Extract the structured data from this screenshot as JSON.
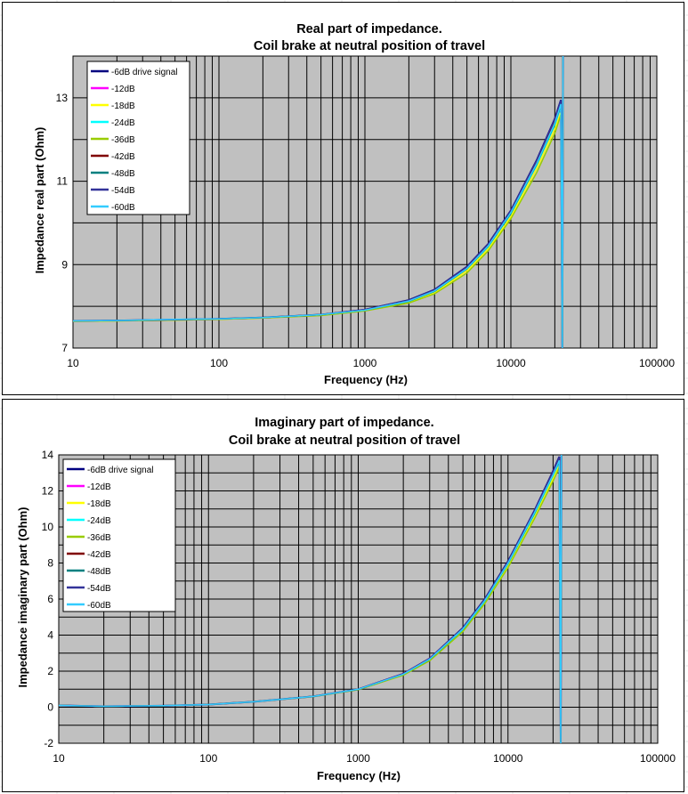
{
  "charts": [
    {
      "title_line1": "Real part of impedance.",
      "title_line2": "Coil brake at neutral position of  travel",
      "xlabel": "Frequency (Hz)",
      "ylabel": "Impedance real part (Ohm)",
      "x_ticks": [
        "10",
        "100",
        "1000",
        "10000",
        "100000"
      ],
      "y_ticks": [
        "7",
        "9",
        "11",
        "13"
      ]
    },
    {
      "title_line1": "Imaginary part of impedance.",
      "title_line2": "Coil brake at neutral position of  travel",
      "xlabel": "Frequency (Hz)",
      "ylabel": "Impedance imaginary part (Ohm)",
      "x_ticks": [
        "10",
        "100",
        "1000",
        "10000",
        "100000"
      ],
      "y_ticks": [
        "-2",
        "0",
        "2",
        "4",
        "6",
        "8",
        "10",
        "12",
        "14"
      ]
    }
  ],
  "legend": [
    {
      "label": "-6dB drive signal",
      "color": "#000080"
    },
    {
      "label": "-12dB",
      "color": "#ff00ff"
    },
    {
      "label": "-18dB",
      "color": "#ffff00"
    },
    {
      "label": "-24dB",
      "color": "#00ffff"
    },
    {
      "label": "-36dB",
      "color": "#99cc00"
    },
    {
      "label": "-42dB",
      "color": "#800000"
    },
    {
      "label": "-48dB",
      "color": "#008080"
    },
    {
      "label": "-54dB",
      "color": "#333399"
    },
    {
      "label": "-60dB",
      "color": "#33ccff"
    }
  ],
  "chart_data": [
    {
      "type": "line",
      "title": "Real part of impedance. Coil brake at neutral position of  travel",
      "xlabel": "Frequency (Hz)",
      "ylabel": "Impedance real part (Ohm)",
      "x_scale": "log",
      "xlim": [
        10,
        100000
      ],
      "ylim": [
        7,
        14
      ],
      "grid": true,
      "legend_position": "top-left",
      "x": [
        10,
        20,
        50,
        100,
        200,
        500,
        1000,
        2000,
        3000,
        5000,
        7000,
        10000,
        15000,
        20000,
        22000
      ],
      "series": [
        {
          "name": "-6dB drive signal",
          "values": [
            7.65,
            7.66,
            7.68,
            7.7,
            7.73,
            7.8,
            7.92,
            8.15,
            8.4,
            8.95,
            9.5,
            10.3,
            11.5,
            12.5,
            12.95
          ]
        },
        {
          "name": "-12dB",
          "values": [
            7.65,
            7.66,
            7.68,
            7.7,
            7.73,
            7.8,
            7.92,
            8.14,
            8.39,
            8.93,
            9.48,
            10.28,
            11.45,
            12.45,
            12.9
          ]
        },
        {
          "name": "-18dB",
          "values": [
            7.64,
            7.65,
            7.67,
            7.69,
            7.72,
            7.79,
            7.9,
            8.1,
            8.33,
            8.85,
            9.38,
            10.15,
            11.3,
            12.25,
            12.65
          ]
        },
        {
          "name": "-24dB",
          "values": [
            7.65,
            7.66,
            7.68,
            7.7,
            7.73,
            7.8,
            7.91,
            8.12,
            8.36,
            8.9,
            9.43,
            10.22,
            11.38,
            12.35,
            12.8
          ]
        },
        {
          "name": "-36dB",
          "values": [
            7.64,
            7.65,
            7.67,
            7.69,
            7.72,
            7.78,
            7.89,
            8.08,
            8.3,
            8.8,
            9.33,
            10.1,
            11.2,
            12.15,
            12.6
          ]
        },
        {
          "name": "-42dB",
          "values": [
            7.65,
            7.66,
            7.68,
            7.7,
            7.73,
            7.8,
            7.92,
            8.14,
            8.38,
            8.92,
            9.47,
            10.27,
            11.44,
            12.44,
            12.88
          ]
        },
        {
          "name": "-48dB",
          "values": [
            7.65,
            7.66,
            7.68,
            7.7,
            7.73,
            7.8,
            7.91,
            8.12,
            8.36,
            8.9,
            9.44,
            10.23,
            11.4,
            12.38,
            12.82
          ]
        },
        {
          "name": "-54dB",
          "values": [
            7.65,
            7.66,
            7.68,
            7.7,
            7.73,
            7.8,
            7.92,
            8.15,
            8.4,
            8.95,
            9.5,
            10.3,
            11.5,
            12.5,
            12.95
          ]
        },
        {
          "name": "-60dB",
          "values": [
            7.65,
            7.66,
            7.69,
            7.7,
            7.73,
            7.8,
            7.91,
            8.13,
            8.37,
            8.91,
            9.45,
            10.25,
            11.42,
            12.4,
            12.85
          ]
        }
      ]
    },
    {
      "type": "line",
      "title": "Imaginary part of impedance. Coil brake at neutral position of  travel",
      "xlabel": "Frequency (Hz)",
      "ylabel": "Impedance imaginary part (Ohm)",
      "x_scale": "log",
      "xlim": [
        10,
        100000
      ],
      "ylim": [
        -2,
        14
      ],
      "grid": true,
      "legend_position": "top-left",
      "x": [
        10,
        20,
        50,
        100,
        200,
        500,
        1000,
        2000,
        3000,
        5000,
        7000,
        10000,
        15000,
        20000,
        22000
      ],
      "series": [
        {
          "name": "-6dB drive signal",
          "values": [
            0.1,
            0.05,
            0.08,
            0.15,
            0.3,
            0.6,
            1.0,
            1.85,
            2.7,
            4.4,
            6.0,
            8.1,
            10.9,
            13.1,
            13.9
          ]
        },
        {
          "name": "-12dB",
          "values": [
            0.1,
            0.05,
            0.08,
            0.15,
            0.3,
            0.6,
            1.0,
            1.85,
            2.7,
            4.38,
            5.97,
            8.05,
            10.85,
            13.0,
            13.8
          ]
        },
        {
          "name": "-18dB",
          "values": [
            0.1,
            0.05,
            0.08,
            0.15,
            0.3,
            0.6,
            0.98,
            1.8,
            2.6,
            4.25,
            5.8,
            7.85,
            10.6,
            12.7,
            13.4
          ]
        },
        {
          "name": "-24dB",
          "values": [
            0.1,
            0.05,
            0.08,
            0.15,
            0.3,
            0.6,
            0.99,
            1.82,
            2.65,
            4.3,
            5.88,
            7.95,
            10.7,
            12.85,
            13.6
          ]
        },
        {
          "name": "-36dB",
          "values": [
            0.1,
            0.05,
            0.08,
            0.15,
            0.3,
            0.59,
            0.97,
            1.78,
            2.58,
            4.2,
            5.75,
            7.75,
            10.45,
            12.55,
            13.3
          ]
        },
        {
          "name": "-42dB",
          "values": [
            0.1,
            0.05,
            0.08,
            0.15,
            0.3,
            0.6,
            1.0,
            1.84,
            2.69,
            4.37,
            5.96,
            8.04,
            10.83,
            12.98,
            13.78
          ]
        },
        {
          "name": "-48dB",
          "values": [
            0.1,
            0.05,
            0.08,
            0.15,
            0.3,
            0.6,
            0.99,
            1.83,
            2.66,
            4.32,
            5.9,
            7.97,
            10.74,
            12.9,
            13.65
          ]
        },
        {
          "name": "-54dB",
          "values": [
            0.1,
            0.05,
            0.08,
            0.15,
            0.3,
            0.6,
            1.0,
            1.85,
            2.7,
            4.4,
            6.0,
            8.1,
            10.9,
            13.1,
            13.9
          ]
        },
        {
          "name": "-60dB",
          "values": [
            0.1,
            0.05,
            0.09,
            0.15,
            0.3,
            0.6,
            1.0,
            1.83,
            2.67,
            4.34,
            5.92,
            8.0,
            10.78,
            12.92,
            13.7
          ]
        }
      ]
    }
  ]
}
